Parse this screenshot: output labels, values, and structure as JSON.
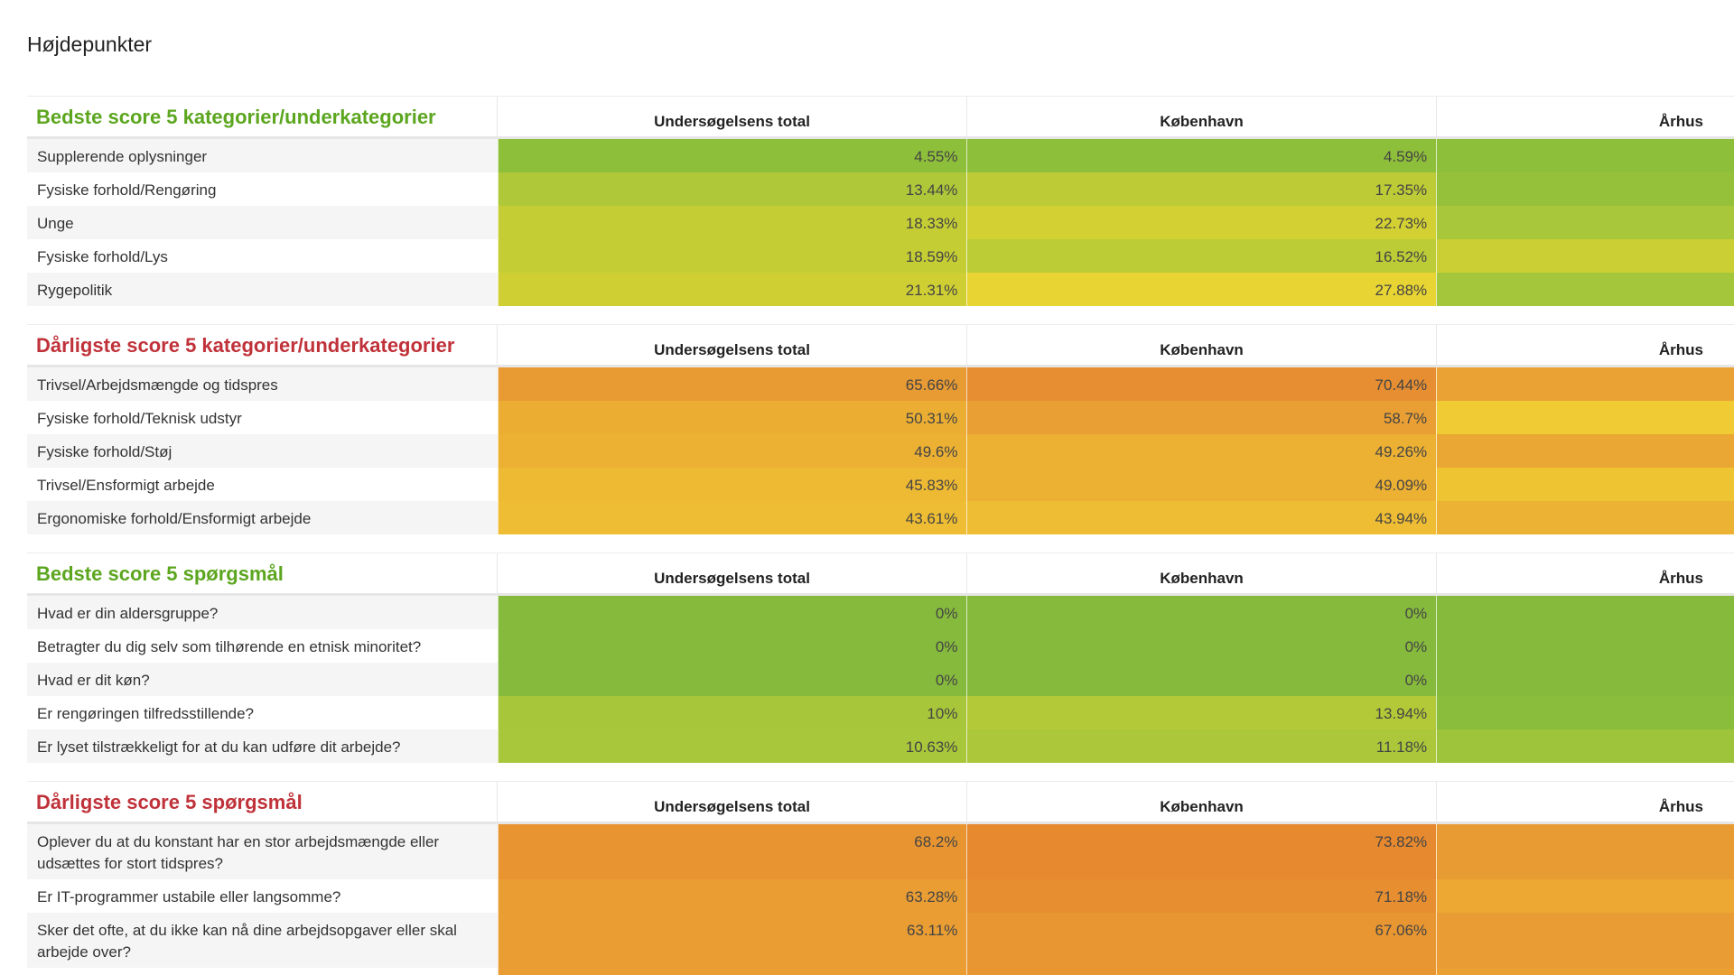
{
  "page_title": "Højdepunkter",
  "sections": [
    {
      "title": "Bedste score 5 kategorier/underkategorier",
      "kind": "best",
      "columns": [
        "Undersøgelsens total",
        "København",
        "Århus"
      ],
      "rows": [
        {
          "label": "Supplerende oplysninger",
          "total": "4.55%",
          "kbh": "4.59%",
          "colors": [
            "#8ebf3a",
            "#8ebf3a",
            "#8ebf3a"
          ]
        },
        {
          "label": "Fysiske forhold/Rengøring",
          "total": "13.44%",
          "kbh": "17.35%",
          "colors": [
            "#afc83a",
            "#bdcc36",
            "#95c13a"
          ]
        },
        {
          "label": "Unge",
          "total": "18.33%",
          "kbh": "22.73%",
          "colors": [
            "#c5cd35",
            "#d3d033",
            "#a9c73a"
          ]
        },
        {
          "label": "Fysiske forhold/Lys",
          "total": "18.59%",
          "kbh": "16.52%",
          "colors": [
            "#c5cd35",
            "#bccc36",
            "#cccf34"
          ]
        },
        {
          "label": "Rygepolitik",
          "total": "21.31%",
          "kbh": "27.88%",
          "colors": [
            "#cfcf34",
            "#e8d533",
            "#a4c63a"
          ]
        }
      ]
    },
    {
      "title": "Dårligste score 5 kategorier/underkategorier",
      "kind": "worst",
      "columns": [
        "Undersøgelsens total",
        "København",
        "Århus"
      ],
      "rows": [
        {
          "label": "Trivsel/Arbejdsmængde og tidspres",
          "total": "65.66%",
          "kbh": "70.44%",
          "colors": [
            "#e89a33",
            "#e68e31",
            "#e9a233"
          ]
        },
        {
          "label": "Fysiske forhold/Teknisk udstyr",
          "total": "50.31%",
          "kbh": "58.7%",
          "colors": [
            "#ebae33",
            "#e99f33",
            "#f0cb33"
          ]
        },
        {
          "label": "Fysiske forhold/Støj",
          "total": "49.6%",
          "kbh": "49.26%",
          "colors": [
            "#ecb033",
            "#ecb033",
            "#eaa733"
          ]
        },
        {
          "label": "Trivsel/Ensformigt arbejde",
          "total": "45.83%",
          "kbh": "49.09%",
          "colors": [
            "#eeb933",
            "#ecb033",
            "#efc433"
          ]
        },
        {
          "label": "Ergonomiske forhold/Ensformigt arbejde",
          "total": "43.61%",
          "kbh": "43.94%",
          "colors": [
            "#eebd33",
            "#eebd33",
            "#ecb233"
          ]
        }
      ]
    },
    {
      "title": "Bedste score 5 spørgsmål",
      "kind": "best",
      "columns": [
        "Undersøgelsens total",
        "København",
        "Århus"
      ],
      "rows": [
        {
          "label": "Hvad er din aldersgruppe?",
          "total": "0%",
          "kbh": "0%",
          "colors": [
            "#86ba3d",
            "#86ba3d",
            "#86ba3d"
          ]
        },
        {
          "label": "Betragter du dig selv som tilhørende en etnisk minoritet?",
          "total": "0%",
          "kbh": "0%",
          "colors": [
            "#86ba3d",
            "#86ba3d",
            "#86ba3d"
          ]
        },
        {
          "label": "Hvad er dit køn?",
          "total": "0%",
          "kbh": "0%",
          "colors": [
            "#86ba3d",
            "#86ba3d",
            "#86ba3d"
          ]
        },
        {
          "label": "Er rengøringen tilfredsstillende?",
          "total": "10%",
          "kbh": "13.94%",
          "colors": [
            "#a7c63a",
            "#b4c937",
            "#8abd3c"
          ]
        },
        {
          "label": "Er lyset tilstrækkeligt for at du kan udføre dit arbejde?",
          "total": "10.63%",
          "kbh": "11.18%",
          "colors": [
            "#a9c73a",
            "#acc73a",
            "#9ec43b"
          ]
        }
      ]
    },
    {
      "title": "Dårligste score 5 spørgsmål",
      "kind": "worst",
      "columns": [
        "Undersøgelsens total",
        "København",
        "Århus"
      ],
      "rows": [
        {
          "label": "Oplever du at du konstant har en stor arbejdsmængde eller udsættes for stort tidspres?",
          "total": "68.2%",
          "kbh": "73.82%",
          "colors": [
            "#e89531",
            "#e6892f",
            "#e89a33"
          ]
        },
        {
          "label": "Er IT-programmer ustabile eller langsomme?",
          "total": "63.28%",
          "kbh": "71.18%",
          "colors": [
            "#e99d33",
            "#e78e31",
            "#eca833"
          ]
        },
        {
          "label": "Sker det ofte, at du ikke kan nå dine arbejdsopgaver eller skal arbejde over?",
          "total": "63.11%",
          "kbh": "67.06%",
          "colors": [
            "#e99d33",
            "#e89631",
            "#e99c33"
          ]
        },
        {
          "label": "",
          "total": "",
          "kbh": "",
          "colors": [
            "#e99d33",
            "#e89631",
            "#eaa033"
          ]
        }
      ]
    }
  ]
}
